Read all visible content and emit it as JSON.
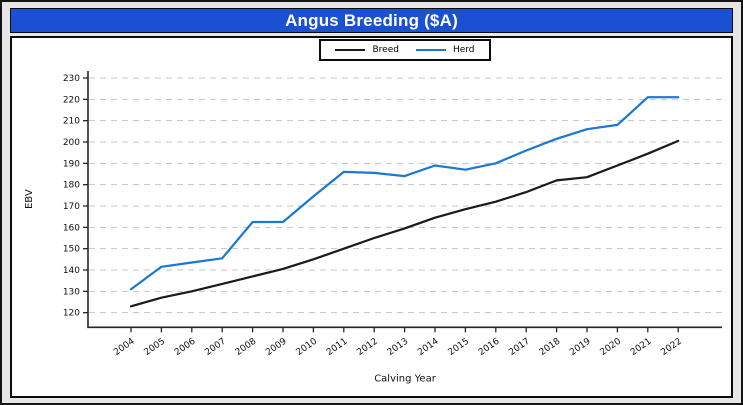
{
  "window": {
    "title": "Angus Breeding ($A)"
  },
  "chart_data": {
    "type": "line",
    "title": "Angus Breeding ($A)",
    "xlabel": "Calving Year",
    "ylabel": "EBV",
    "x": [
      2004,
      2005,
      2006,
      2007,
      2008,
      2009,
      2010,
      2011,
      2012,
      2013,
      2014,
      2015,
      2016,
      2017,
      2018,
      2019,
      2020,
      2021,
      2022
    ],
    "series": [
      {
        "name": "Breed",
        "color": "#1a1a1a",
        "values": [
          123,
          127,
          130,
          133.5,
          137,
          140.5,
          145,
          150,
          155,
          159.5,
          164.5,
          168.5,
          172,
          176.5,
          182,
          183.5,
          189,
          194.5,
          200.5
        ]
      },
      {
        "name": "Herd",
        "color": "#1b77cf",
        "values": [
          131,
          141.5,
          143.5,
          145.5,
          162.5,
          162.5,
          174.5,
          186,
          185.5,
          184,
          189,
          187,
          190,
          196,
          201.5,
          206,
          208,
          221,
          221
        ]
      }
    ],
    "ylim": [
      120,
      230
    ],
    "yticks": [
      230,
      220,
      210,
      200,
      190,
      180,
      170,
      160,
      150,
      140,
      130,
      120
    ],
    "grid": "horizontal-dashed",
    "gridline_color": "#c4c4c4",
    "axis_color": "#262626",
    "legend_position": "top-center"
  }
}
